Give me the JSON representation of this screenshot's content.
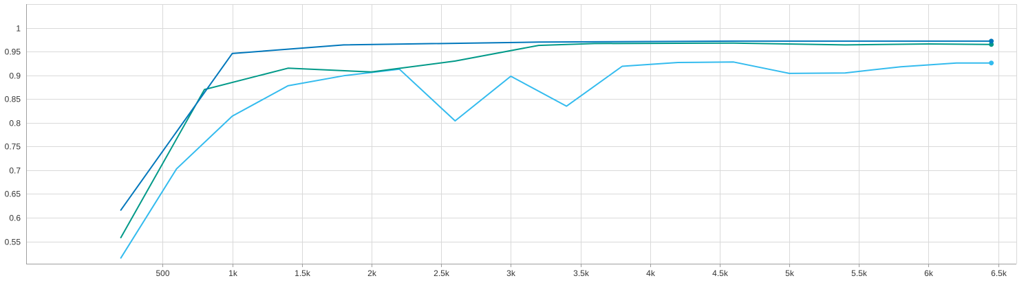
{
  "chart_data": {
    "type": "line",
    "title": "",
    "xlabel": "",
    "ylabel": "",
    "xlim": [
      -480,
      6630
    ],
    "ylim": [
      0.503,
      1.05
    ],
    "grid": true,
    "x_ticks": [
      500,
      1000,
      1500,
      2000,
      2500,
      3000,
      3500,
      4000,
      4500,
      5000,
      5500,
      6000,
      6500
    ],
    "x_tick_labels": [
      "500",
      "1k",
      "1.5k",
      "2k",
      "2.5k",
      "3k",
      "3.5k",
      "4k",
      "4.5k",
      "5k",
      "5.5k",
      "6k",
      "6.5k"
    ],
    "y_ticks": [
      0.55,
      0.6,
      0.65,
      0.7,
      0.75,
      0.8,
      0.85,
      0.9,
      0.95,
      1
    ],
    "y_tick_labels": [
      "0.55",
      "0.6",
      "0.65",
      "0.7",
      "0.75",
      "0.8",
      "0.85",
      "0.9",
      "0.95",
      "1"
    ],
    "series": [
      {
        "color": "#0077bb",
        "x": [
          200,
          1000,
          1800,
          3200,
          4600,
          6450
        ],
        "y": [
          0.616,
          0.946,
          0.964,
          0.97,
          0.972,
          0.972
        ]
      },
      {
        "color": "#009988",
        "x": [
          200,
          800,
          1400,
          2000,
          2600,
          3200,
          3600,
          4600,
          5400,
          6000,
          6450
        ],
        "y": [
          0.558,
          0.87,
          0.915,
          0.907,
          0.93,
          0.963,
          0.967,
          0.968,
          0.964,
          0.966,
          0.965
        ]
      },
      {
        "color": "#33bbee",
        "x": [
          200,
          600,
          1000,
          1400,
          1800,
          2200,
          2600,
          3000,
          3400,
          3800,
          4200,
          4600,
          5000,
          5400,
          5800,
          6200,
          6450
        ],
        "y": [
          0.515,
          0.703,
          0.814,
          0.878,
          0.899,
          0.913,
          0.804,
          0.898,
          0.835,
          0.919,
          0.927,
          0.928,
          0.904,
          0.905,
          0.918,
          0.926,
          0.926
        ]
      }
    ]
  }
}
